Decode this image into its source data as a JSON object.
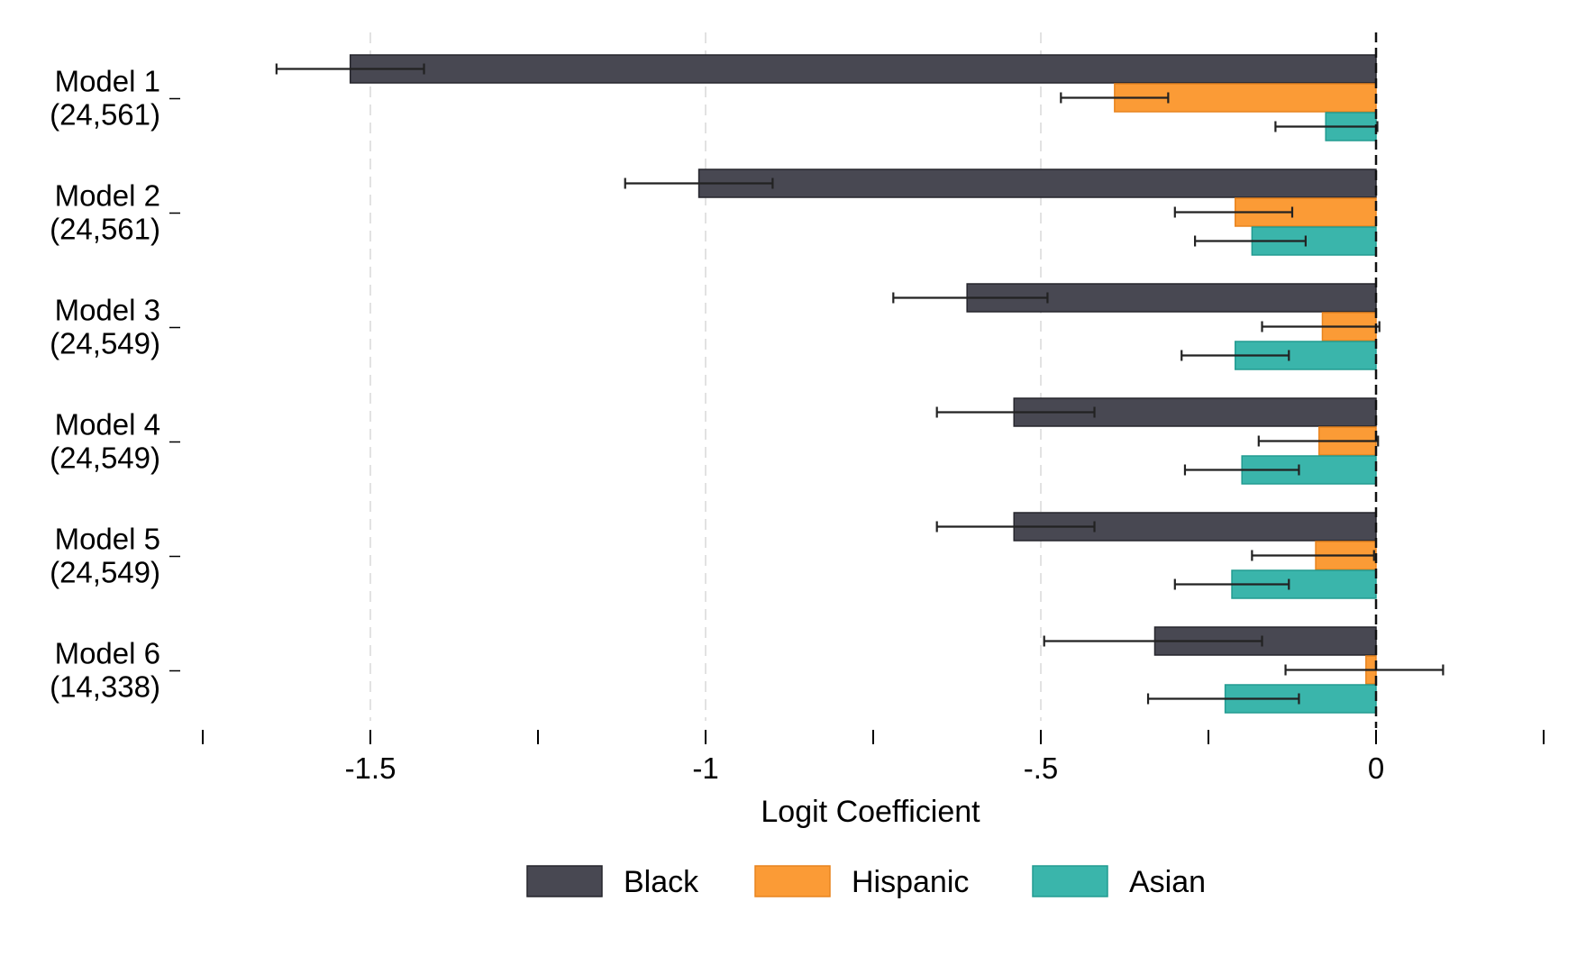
{
  "chart_data": {
    "type": "bar",
    "orientation": "horizontal",
    "title": "",
    "xlabel": "Logit Coefficient",
    "ylabel": "",
    "xlim": [
      -1.75,
      0.25
    ],
    "x_ticks": [
      -1.75,
      -1.5,
      -1.25,
      -1,
      -0.75,
      -0.5,
      -0.25,
      0,
      0.25
    ],
    "x_tick_labels": [
      {
        "value": -1.5,
        "label": "-1.5"
      },
      {
        "value": -1,
        "label": "-1"
      },
      {
        "value": -0.5,
        "label": "-.5"
      },
      {
        "value": 0,
        "label": "0"
      }
    ],
    "gridlines_at": [
      -1.5,
      -1,
      -0.5
    ],
    "grid": true,
    "reference_line": 0,
    "legend_position": "bottom",
    "categories": [
      {
        "line1": "Model 1",
        "line2": "(24,561)"
      },
      {
        "line1": "Model 2",
        "line2": "(24,561)"
      },
      {
        "line1": "Model 3",
        "line2": "(24,549)"
      },
      {
        "line1": "Model 4",
        "line2": "(24,549)"
      },
      {
        "line1": "Model 5",
        "line2": "(24,549)"
      },
      {
        "line1": "Model 6",
        "line2": "(14,338)"
      }
    ],
    "series": [
      {
        "name": "Black",
        "color": "#484852",
        "edge": "#25252c",
        "values": [
          -1.53,
          -1.01,
          -0.61,
          -0.54,
          -0.54,
          -0.33
        ],
        "ci_low": [
          -1.64,
          -1.12,
          -0.72,
          -0.655,
          -0.655,
          -0.495
        ],
        "ci_high": [
          -1.42,
          -0.9,
          -0.49,
          -0.42,
          -0.42,
          -0.17
        ]
      },
      {
        "name": "Hispanic",
        "color": "#fb9b36",
        "edge": "#e8841f",
        "values": [
          -0.39,
          -0.21,
          -0.08,
          -0.085,
          -0.09,
          -0.015
        ],
        "ci_low": [
          -0.47,
          -0.3,
          -0.17,
          -0.175,
          -0.185,
          -0.135
        ],
        "ci_high": [
          -0.31,
          -0.125,
          0.005,
          0.003,
          -0.003,
          0.1
        ]
      },
      {
        "name": "Asian",
        "color": "#3ab5ab",
        "edge": "#229b91",
        "values": [
          -0.075,
          -0.185,
          -0.21,
          -0.2,
          -0.215,
          -0.225
        ],
        "ci_low": [
          -0.15,
          -0.27,
          -0.29,
          -0.285,
          -0.3,
          -0.34
        ],
        "ci_high": [
          0.002,
          -0.105,
          -0.13,
          -0.115,
          -0.13,
          -0.115
        ]
      }
    ]
  }
}
